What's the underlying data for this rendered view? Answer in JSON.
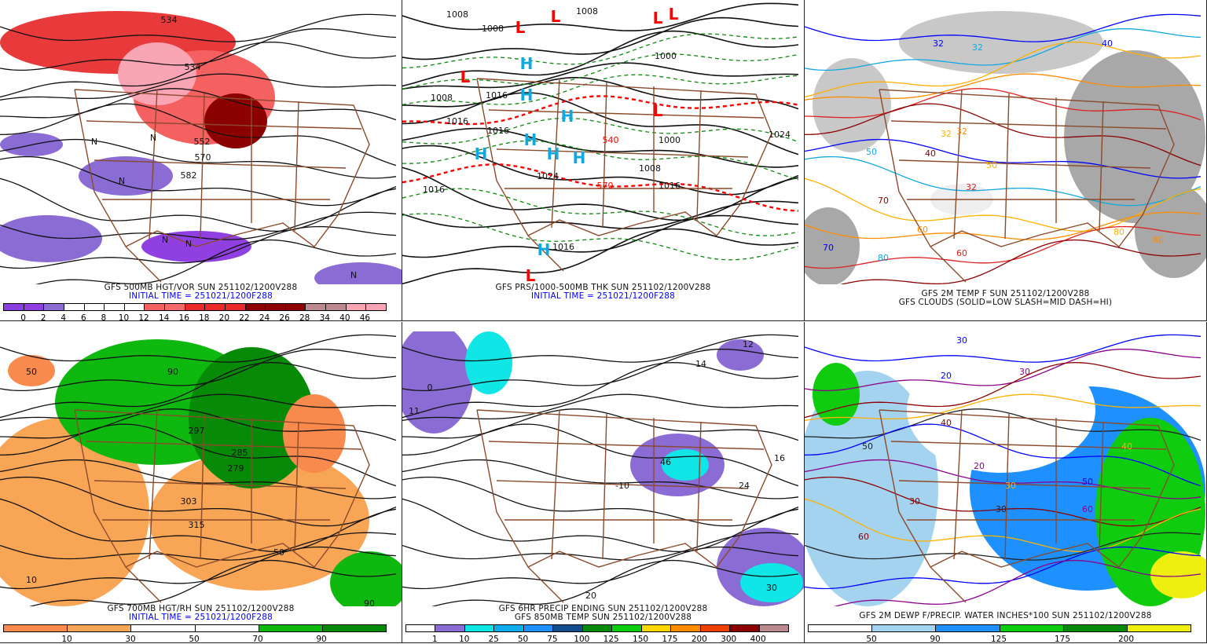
{
  "panels": [
    {
      "id": "500mb-hgt-vor",
      "caption": [
        "GFS 500MB HGT/VOR SUN 251102/1200V288"
      ],
      "initial_time": "INITIAL TIME = 251021/1200F288",
      "colorbar": {
        "colors": [
          "#8a3fe0",
          "#9040e0",
          "#8a6cd4",
          "#ffffff",
          "#ffffff",
          "#ffffff",
          "#ffffff",
          "#f56060",
          "#f46a6a",
          "#ea2a2a",
          "#ea2a2a",
          "#ea2a2a",
          "#8b0000",
          "#8b0000",
          "#8b0000",
          "#bc8a8e",
          "#bc8a8e",
          "#f9a5b4",
          "#f9a5b4"
        ],
        "labels": [
          "0",
          "2",
          "4",
          "6",
          "8",
          "10",
          "12",
          "14",
          "16",
          "18",
          "20",
          "22",
          "24",
          "26",
          "28",
          "34",
          "40",
          "46"
        ]
      },
      "map_labels": [
        "534",
        "534",
        "552",
        "570",
        "582",
        "N",
        "N",
        "N",
        "N",
        "N",
        "N"
      ]
    },
    {
      "id": "mslp-thickness",
      "caption": [
        "GFS PRS/1000-500MB THK SUN 251102/1200V288"
      ],
      "initial_time": "INITIAL TIME = 251021/1200F288",
      "map_labels": [
        "1008",
        "1008",
        "1008",
        "1008",
        "1016",
        "1016",
        "1016",
        "1016",
        "1016",
        "1016",
        "1000",
        "1000",
        "1008",
        "1024",
        "1024",
        "540",
        "570"
      ],
      "highs": [
        "H",
        "H",
        "H",
        "H",
        "H",
        "H",
        "H",
        "H"
      ],
      "lows": [
        "L",
        "L",
        "L",
        "L",
        "L",
        "L",
        "L"
      ]
    },
    {
      "id": "2m-temp-clouds",
      "caption": [
        "GFS 2M TEMP F SUN 251102/1200V288",
        "GFS CLOUDS (SOLID=LOW SLASH=MID DASH=HI)"
      ],
      "map_labels": [
        "32",
        "32",
        "32",
        "32",
        "32",
        "40",
        "40",
        "50",
        "50",
        "60",
        "60",
        "70",
        "70",
        "80",
        "80",
        "80"
      ]
    },
    {
      "id": "700mb-hgt-rh",
      "caption": [
        "GFS 700MB HGT/RH SUN 251102/1200V288"
      ],
      "initial_time": "INITIAL TIME = 251021/1200F288",
      "colorbar": {
        "colors": [
          "#f98a4e",
          "#f9a556",
          "#ffffff",
          "#ffffff",
          "#0fb80f",
          "#078a07"
        ],
        "labels": [
          "10",
          "30",
          "50",
          "70",
          "90"
        ]
      },
      "map_labels": [
        "279",
        "285",
        "297",
        "303",
        "315",
        "50",
        "50",
        "90",
        "90",
        "10"
      ]
    },
    {
      "id": "6hr-precip-850-temp",
      "caption": [
        "GFS 6HR PRECIP ENDING SUN 251102/1200V288",
        "GFS 850MB TEMP SUN 251102/1200V288"
      ],
      "colorbar": {
        "colors": [
          "#ffffff",
          "#8a6cd4",
          "#10e6e6",
          "#10aeee",
          "#1e90ff",
          "#104e8b",
          "#078a07",
          "#0fcc0f",
          "#ffd700",
          "#ff8c00",
          "#ee4000",
          "#8b0000",
          "#bc8a8e"
        ],
        "labels": [
          "1",
          "10",
          "25",
          "50",
          "75",
          "100",
          "125",
          "150",
          "175",
          "200",
          "300",
          "400"
        ]
      },
      "map_labels": [
        "12",
        "14",
        "16",
        "24",
        "30",
        "46",
        "11",
        "0",
        "-10",
        "20"
      ]
    },
    {
      "id": "2m-dewp-pwat",
      "caption": [
        "GFS 2M DEWP F/PRECIP. WATER INCHES*100 SUN 251102/1200V288"
      ],
      "colorbar": {
        "colors": [
          "#ffffff",
          "#a4d3f0",
          "#1e90ff",
          "#0fcc0f",
          "#078a07",
          "#eeee10"
        ],
        "labels": [
          "50",
          "90",
          "125",
          "175",
          "200"
        ]
      },
      "map_labels": [
        "30",
        "30",
        "30",
        "30",
        "30",
        "20",
        "20",
        "40",
        "40",
        "50",
        "50",
        "60",
        "60"
      ]
    }
  ],
  "colors": {
    "state_lines": "#8b4a2b",
    "contours": "#111111",
    "initial_time_text": "#0000ff",
    "high_marker": "#10a8e0",
    "low_marker": "#ff0000",
    "thickness_540_570": "#ff0000",
    "thickness_other": "#108810"
  }
}
